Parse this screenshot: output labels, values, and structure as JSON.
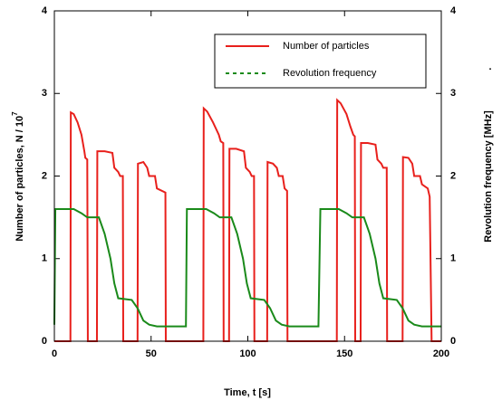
{
  "chart_data": {
    "type": "line",
    "xlabel": "Time, t [s]",
    "ylabel": "Number of particles,  N / 10",
    "ylabel_superscript": "7",
    "y2label": "Revolution frequency [MHz]",
    "annotation": ".",
    "xlim": [
      0,
      200
    ],
    "xticks": [
      0,
      50,
      100,
      150,
      200
    ],
    "ylim": [
      0,
      4
    ],
    "yticks": [
      0,
      1,
      2,
      3,
      4
    ],
    "y2lim": [
      0,
      4
    ],
    "y2ticks": [
      0,
      1,
      2,
      3,
      4
    ],
    "legend": "upper right",
    "series": [
      {
        "name": "Number of particles",
        "color": "#e8201c",
        "style": "solid",
        "x": [
          0,
          8.3,
          8.5,
          10,
          12,
          14,
          15.5,
          16,
          17,
          17.3,
          22,
          22.2,
          26,
          30,
          31,
          33,
          34,
          35.4,
          35.6,
          43,
          43.2,
          46,
          48,
          49,
          52,
          53,
          57.4,
          57.6,
          77,
          77.2,
          79,
          82,
          85,
          86,
          87.3,
          87.5,
          90.3,
          90.5,
          94,
          98,
          99,
          101,
          102,
          103.2,
          103.4,
          110,
          110.2,
          113,
          115,
          116,
          118,
          119,
          120.3,
          120.5,
          146,
          146.2,
          148,
          151,
          153,
          154.5,
          155.3,
          155.5,
          158.3,
          158.5,
          162,
          166,
          167,
          169,
          170,
          171.8,
          172,
          180,
          180.2,
          183,
          185,
          186,
          189,
          190,
          193,
          194,
          195,
          200
        ],
        "values": [
          0,
          0,
          2.77,
          2.75,
          2.65,
          2.5,
          2.3,
          2.22,
          2.2,
          0,
          0,
          2.3,
          2.3,
          2.28,
          2.1,
          2.05,
          2.0,
          2.0,
          0,
          0,
          2.15,
          2.17,
          2.1,
          2.0,
          2.0,
          1.85,
          1.8,
          0,
          0,
          2.82,
          2.78,
          2.65,
          2.5,
          2.42,
          2.4,
          0,
          0,
          2.33,
          2.33,
          2.3,
          2.1,
          2.05,
          2.0,
          2.0,
          0,
          0,
          2.17,
          2.15,
          2.1,
          2.0,
          2.0,
          1.85,
          1.82,
          0,
          0,
          2.92,
          2.88,
          2.75,
          2.6,
          2.5,
          2.48,
          0,
          0,
          2.4,
          2.4,
          2.38,
          2.2,
          2.15,
          2.1,
          2.1,
          0,
          0,
          2.23,
          2.22,
          2.15,
          2.0,
          2.0,
          1.9,
          1.85,
          1.75,
          0,
          0
        ]
      },
      {
        "name": "Revolution frequency",
        "color": "#1a8a1a",
        "style": "dashed",
        "axis": "y2",
        "x": [
          0,
          0.5,
          10,
          14,
          17,
          23,
          26,
          29,
          31,
          33,
          40,
          43,
          46,
          49,
          53,
          68,
          68.5,
          78.5,
          82.5,
          85.5,
          91.5,
          94.5,
          97.5,
          99.5,
          101.5,
          108.5,
          111.5,
          114.5,
          117.5,
          121.5,
          136.5,
          137.5,
          147,
          151,
          154,
          160,
          163,
          166,
          168,
          170,
          177,
          180,
          183,
          186,
          190,
          200
        ],
        "values": [
          0.2,
          1.6,
          1.6,
          1.55,
          1.5,
          1.5,
          1.3,
          1.0,
          0.7,
          0.52,
          0.5,
          0.4,
          0.25,
          0.2,
          0.18,
          0.18,
          1.6,
          1.6,
          1.55,
          1.5,
          1.5,
          1.3,
          1.0,
          0.7,
          0.52,
          0.5,
          0.4,
          0.25,
          0.2,
          0.18,
          0.18,
          1.6,
          1.6,
          1.55,
          1.5,
          1.5,
          1.3,
          1.0,
          0.7,
          0.52,
          0.5,
          0.4,
          0.25,
          0.2,
          0.18,
          0.18
        ]
      }
    ]
  }
}
